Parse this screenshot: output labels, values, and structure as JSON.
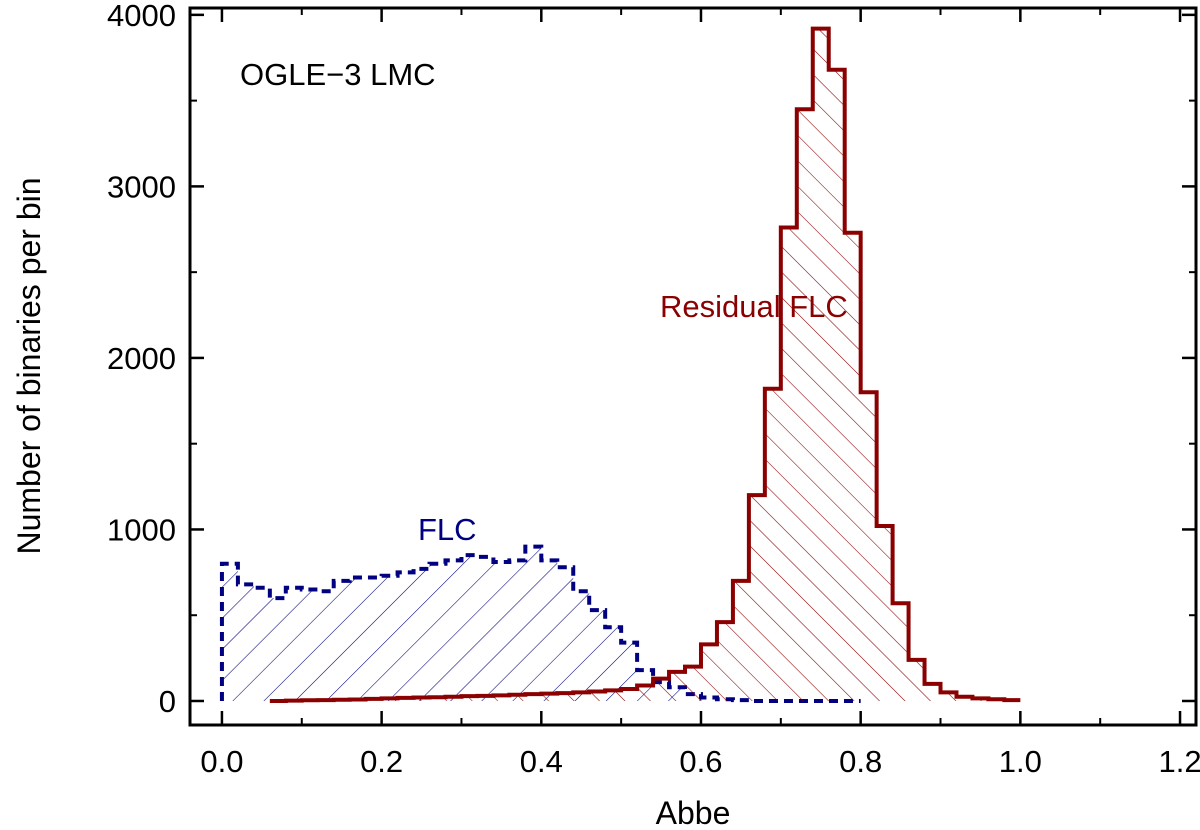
{
  "chart_data": {
    "type": "histogram",
    "xlabel": "Abbe",
    "ylabel": "Number of binaries per bin",
    "xlim": [
      -0.04,
      1.22
    ],
    "ylim": [
      -140,
      4040
    ],
    "xticks": [
      0.0,
      0.2,
      0.4,
      0.6,
      0.8,
      1.0,
      1.2
    ],
    "xtick_labels": [
      "0.0",
      "0.2",
      "0.4",
      "0.6",
      "0.8",
      "1.0",
      "1.2"
    ],
    "yticks": [
      0,
      1000,
      2000,
      3000,
      4000
    ],
    "ytick_labels": [
      "0",
      "1000",
      "2000",
      "3000",
      "4000"
    ],
    "bin_width": 0.02,
    "annotations": [
      {
        "text": "OGLE−3 LMC",
        "color": "#000000"
      },
      {
        "text": "Residual FLC",
        "color": "#8b0000"
      },
      {
        "text": "FLC",
        "color": "#000080"
      }
    ],
    "series": [
      {
        "name": "FLC",
        "color": "#000080",
        "style": "dashed",
        "hatch": "forward",
        "start": 0.0,
        "values": [
          800,
          680,
          660,
          600,
          660,
          650,
          640,
          700,
          720,
          720,
          730,
          750,
          770,
          800,
          820,
          850,
          840,
          810,
          820,
          900,
          820,
          780,
          640,
          530,
          430,
          340,
          180,
          110,
          80,
          40,
          20,
          10,
          5,
          0,
          0,
          0,
          0,
          0,
          0,
          0
        ]
      },
      {
        "name": "Residual FLC",
        "color": "#8b0000",
        "style": "solid",
        "hatch": "backward",
        "start": 0.06,
        "values": [
          0,
          2,
          4,
          5,
          7,
          9,
          12,
          15,
          18,
          20,
          22,
          25,
          28,
          30,
          33,
          36,
          40,
          43,
          46,
          50,
          55,
          62,
          70,
          90,
          130,
          170,
          200,
          330,
          460,
          700,
          1200,
          1820,
          2760,
          3450,
          3920,
          3680,
          2730,
          1800,
          1020,
          570,
          240,
          100,
          50,
          25,
          15,
          10,
          5
        ]
      }
    ]
  }
}
